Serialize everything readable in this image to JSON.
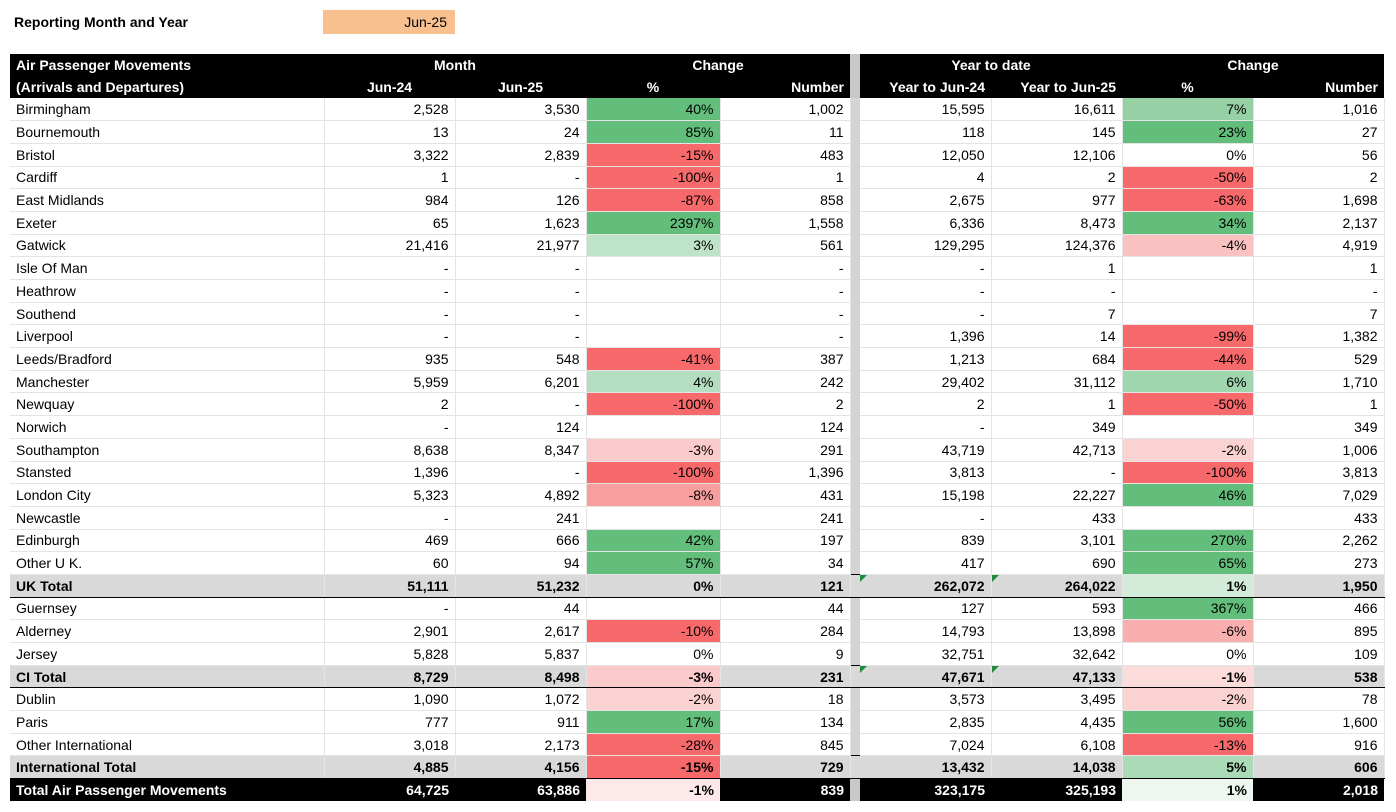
{
  "report": {
    "label": "Reporting Month and Year",
    "value": "Jun-25"
  },
  "headers": {
    "title1": "Air Passenger Movements",
    "title2": "(Arrivals and Departures)",
    "month": "Month",
    "change": "Change",
    "ytd": "Year to date",
    "jun24": "Jun-24",
    "jun25": "Jun-25",
    "pct": "%",
    "number": "Number",
    "ytd24": "Year to Jun-24",
    "ytd25": "Year to Jun-25"
  },
  "rows": [
    {
      "name": "Birmingham",
      "m24": "2,528",
      "m25": "3,530",
      "mp": "40%",
      "mn": "1,002",
      "y24": "15,595",
      "y25": "16,611",
      "yp": "7%",
      "yn": "1,016"
    },
    {
      "name": "Bournemouth",
      "m24": "13",
      "m25": "24",
      "mp": "85%",
      "mn": "11",
      "y24": "118",
      "y25": "145",
      "yp": "23%",
      "yn": "27"
    },
    {
      "name": "Bristol",
      "m24": "3,322",
      "m25": "2,839",
      "mp": "-15%",
      "mn": "483",
      "y24": "12,050",
      "y25": "12,106",
      "yp": "0%",
      "yn": "56"
    },
    {
      "name": "Cardiff",
      "m24": "1",
      "m25": "-",
      "mp": "-100%",
      "mn": "1",
      "y24": "4",
      "y25": "2",
      "yp": "-50%",
      "yn": "2"
    },
    {
      "name": "East Midlands",
      "m24": "984",
      "m25": "126",
      "mp": "-87%",
      "mn": "858",
      "y24": "2,675",
      "y25": "977",
      "yp": "-63%",
      "yn": "1,698"
    },
    {
      "name": "Exeter",
      "m24": "65",
      "m25": "1,623",
      "mp": "2397%",
      "mn": "1,558",
      "y24": "6,336",
      "y25": "8,473",
      "yp": "34%",
      "yn": "2,137"
    },
    {
      "name": "Gatwick",
      "m24": "21,416",
      "m25": "21,977",
      "mp": "3%",
      "mn": "561",
      "y24": "129,295",
      "y25": "124,376",
      "yp": "-4%",
      "yn": "4,919"
    },
    {
      "name": "Isle Of Man",
      "m24": "-",
      "m25": "-",
      "mp": "",
      "mn": "-",
      "y24": "-",
      "y25": "1",
      "yp": "",
      "yn": "1"
    },
    {
      "name": "Heathrow",
      "m24": "-",
      "m25": "-",
      "mp": "",
      "mn": "-",
      "y24": "-",
      "y25": "-",
      "yp": "",
      "yn": "-"
    },
    {
      "name": "Southend",
      "m24": "-",
      "m25": "-",
      "mp": "",
      "mn": "-",
      "y24": "-",
      "y25": "7",
      "yp": "",
      "yn": "7"
    },
    {
      "name": "Liverpool",
      "m24": "-",
      "m25": "-",
      "mp": "",
      "mn": "-",
      "y24": "1,396",
      "y25": "14",
      "yp": "-99%",
      "yn": "1,382"
    },
    {
      "name": "Leeds/Bradford",
      "m24": "935",
      "m25": "548",
      "mp": "-41%",
      "mn": "387",
      "y24": "1,213",
      "y25": "684",
      "yp": "-44%",
      "yn": "529"
    },
    {
      "name": "Manchester",
      "m24": "5,959",
      "m25": "6,201",
      "mp": "4%",
      "mn": "242",
      "y24": "29,402",
      "y25": "31,112",
      "yp": "6%",
      "yn": "1,710"
    },
    {
      "name": "Newquay",
      "m24": "2",
      "m25": "-",
      "mp": "-100%",
      "mn": "2",
      "y24": "2",
      "y25": "1",
      "yp": "-50%",
      "yn": "1"
    },
    {
      "name": "Norwich",
      "m24": "-",
      "m25": "124",
      "mp": "",
      "mn": "124",
      "y24": "-",
      "y25": "349",
      "yp": "",
      "yn": "349"
    },
    {
      "name": "Southampton",
      "m24": "8,638",
      "m25": "8,347",
      "mp": "-3%",
      "mn": "291",
      "y24": "43,719",
      "y25": "42,713",
      "yp": "-2%",
      "yn": "1,006"
    },
    {
      "name": "Stansted",
      "m24": "1,396",
      "m25": "-",
      "mp": "-100%",
      "mn": "1,396",
      "y24": "3,813",
      "y25": "-",
      "yp": "-100%",
      "yn": "3,813"
    },
    {
      "name": "London City",
      "m24": "5,323",
      "m25": "4,892",
      "mp": "-8%",
      "mn": "431",
      "y24": "15,198",
      "y25": "22,227",
      "yp": "46%",
      "yn": "7,029"
    },
    {
      "name": "Newcastle",
      "m24": "-",
      "m25": "241",
      "mp": "",
      "mn": "241",
      "y24": "-",
      "y25": "433",
      "yp": "",
      "yn": "433"
    },
    {
      "name": "Edinburgh",
      "m24": "469",
      "m25": "666",
      "mp": "42%",
      "mn": "197",
      "y24": "839",
      "y25": "3,101",
      "yp": "270%",
      "yn": "2,262"
    },
    {
      "name": "Other  U K.",
      "m24": "60",
      "m25": "94",
      "mp": "57%",
      "mn": "34",
      "y24": "417",
      "y25": "690",
      "yp": "65%",
      "yn": "273"
    },
    {
      "name": "UK Total",
      "m24": "51,111",
      "m25": "51,232",
      "mp": "0%",
      "mn": "121",
      "y24": "262,072",
      "y25": "264,022",
      "yp": "1%",
      "yn": "1,950"
    },
    {
      "name": "Guernsey",
      "m24": "-",
      "m25": "44",
      "mp": "",
      "mn": "44",
      "y24": "127",
      "y25": "593",
      "yp": "367%",
      "yn": "466"
    },
    {
      "name": "Alderney",
      "m24": "2,901",
      "m25": "2,617",
      "mp": "-10%",
      "mn": "284",
      "y24": "14,793",
      "y25": "13,898",
      "yp": "-6%",
      "yn": "895"
    },
    {
      "name": "Jersey",
      "m24": "5,828",
      "m25": "5,837",
      "mp": "0%",
      "mn": "9",
      "y24": "32,751",
      "y25": "32,642",
      "yp": "0%",
      "yn": "109"
    },
    {
      "name": "CI Total",
      "m24": "8,729",
      "m25": "8,498",
      "mp": "-3%",
      "mn": "231",
      "y24": "47,671",
      "y25": "47,133",
      "yp": "-1%",
      "yn": "538"
    },
    {
      "name": "Dublin",
      "m24": "1,090",
      "m25": "1,072",
      "mp": "-2%",
      "mn": "18",
      "y24": "3,573",
      "y25": "3,495",
      "yp": "-2%",
      "yn": "78"
    },
    {
      "name": "Paris",
      "m24": "777",
      "m25": "911",
      "mp": "17%",
      "mn": "134",
      "y24": "2,835",
      "y25": "4,435",
      "yp": "56%",
      "yn": "1,600"
    },
    {
      "name": "Other International",
      "m24": "3,018",
      "m25": "2,173",
      "mp": "-28%",
      "mn": "845",
      "y24": "7,024",
      "y25": "6,108",
      "yp": "-13%",
      "yn": "916"
    },
    {
      "name": "International Total",
      "m24": "4,885",
      "m25": "4,156",
      "mp": "-15%",
      "mn": "729",
      "y24": "13,432",
      "y25": "14,038",
      "yp": "5%",
      "yn": "606"
    },
    {
      "name": "Total Air Passenger Movements",
      "m24": "64,725",
      "m25": "63,886",
      "mp": "-1%",
      "mn": "839",
      "y24": "323,175",
      "y25": "325,193",
      "yp": "1%",
      "yn": "2,018"
    }
  ],
  "colors": {
    "header_bg": "#000000",
    "total_bg": "#d9d9d9",
    "report_value_bg": "#f8bf8f",
    "pos_strong": "#63be7b",
    "neg_strong": "#f8696b",
    "marker_triangle": "#1f8b3c"
  }
}
